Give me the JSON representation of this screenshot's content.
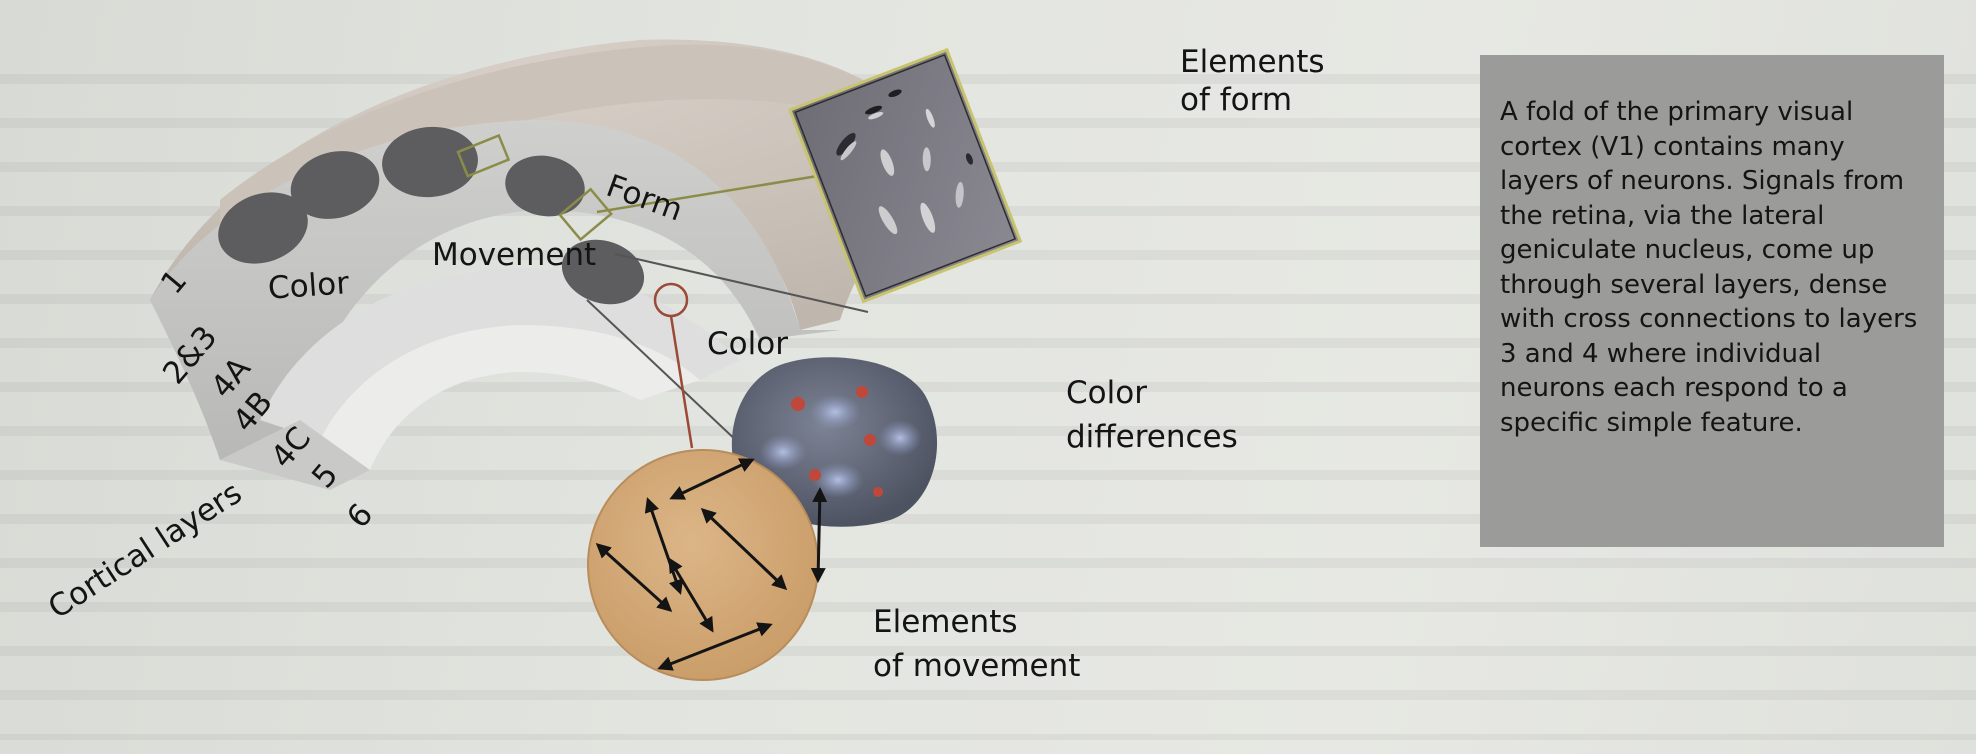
{
  "labels": {
    "form": "Form",
    "movement": "Movement",
    "color_left": "Color",
    "color_right": "Color",
    "elements_of_form_line1": "Elements",
    "elements_of_form_line2": "of form",
    "color_differences_line1": "Color",
    "color_differences_line2": "differences",
    "elements_of_movement_line1": "Elements",
    "elements_of_movement_line2": "of movement"
  },
  "layers": {
    "title": "Cortical layers",
    "items": [
      "1",
      "2&3",
      "4A",
      "4B",
      "4C",
      "5",
      "6"
    ]
  },
  "caption": {
    "text": "A fold of the primary visual cortex (V1) contains many layers of neurons. Signals from the retina, via the lateral geniculate nucleus, come up through several layers, dense with cross connections to layers 3 and 4 where individual neurons each respond to a specific simple feature."
  },
  "colors": {
    "cortex": "#d3ccc5",
    "blob": "#5d5d5f",
    "form_link": "#8c8c4a",
    "movement_link": "#9a4a36",
    "movement_disc": "#d2aa78",
    "caption_bg": "#9b9c99"
  }
}
